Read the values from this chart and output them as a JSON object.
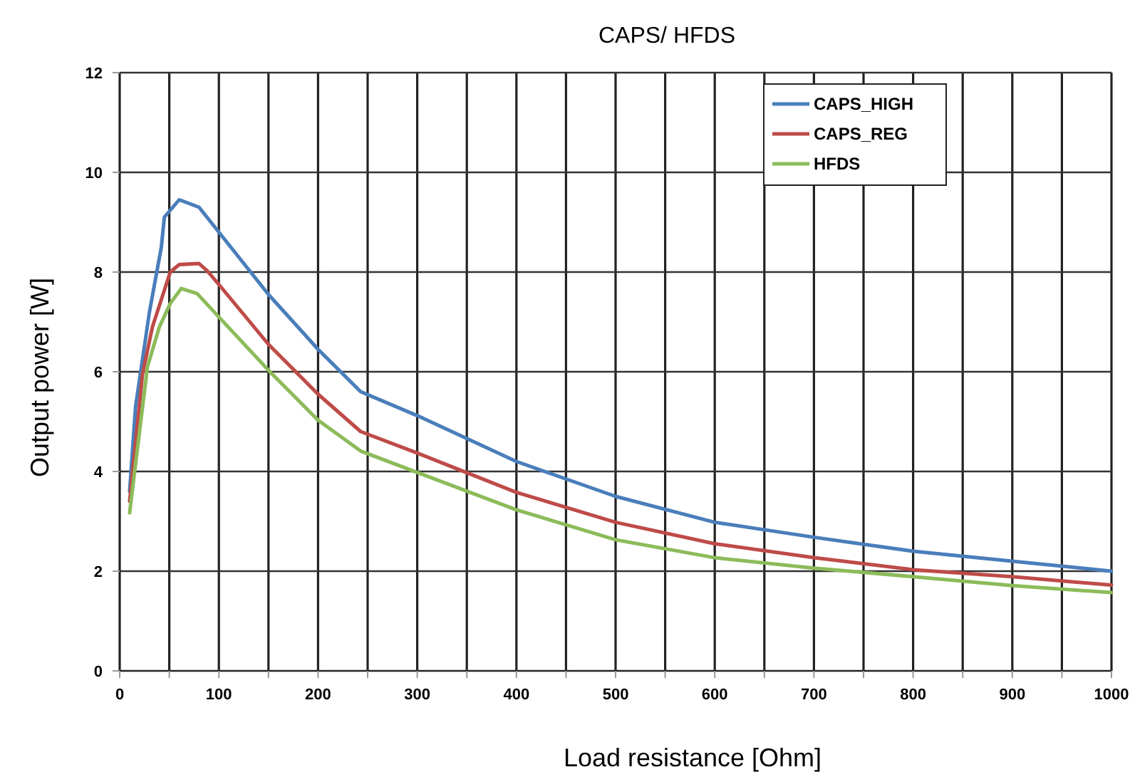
{
  "chart_data": {
    "type": "line",
    "title": "CAPS/ HFDS",
    "xlabel": "Load resistance [Ohm]",
    "ylabel": "Output power [W]",
    "xlim": [
      0,
      1000
    ],
    "ylim": [
      0,
      12
    ],
    "xticks": [
      0,
      {
        "value": 50,
        "label": null
      },
      100,
      {
        "value": 150,
        "label": null
      },
      200,
      {
        "value": 250,
        "label": null
      },
      300,
      {
        "value": 350,
        "label": null
      },
      400,
      {
        "value": 450,
        "label": null
      },
      500,
      {
        "value": 550,
        "label": null
      },
      600,
      {
        "value": 650,
        "label": null
      },
      700,
      {
        "value": 750,
        "label": null
      },
      800,
      {
        "value": 850,
        "label": null
      },
      900,
      {
        "value": 950,
        "label": null
      },
      1000
    ],
    "yticks": [
      0,
      2,
      4,
      6,
      8,
      10,
      12
    ],
    "grid": true,
    "legend": "top right",
    "line_style": "solid",
    "marker": "none",
    "series": [
      {
        "name": "CAPS_HIGH",
        "color": "#4a7ebb",
        "x": [
          10,
          16,
          30,
          42,
          45,
          60,
          80,
          90,
          100,
          150,
          200,
          243,
          300,
          400,
          500,
          600,
          700,
          800,
          900,
          1000
        ],
        "values": [
          3.6,
          5.3,
          7.2,
          8.5,
          9.1,
          9.45,
          9.3,
          9.05,
          8.8,
          7.55,
          6.45,
          5.6,
          5.12,
          4.2,
          3.5,
          2.98,
          2.68,
          2.4,
          2.2,
          2.0
        ]
      },
      {
        "name": "CAPS_REG",
        "color": "#be4b48",
        "x": [
          10,
          23,
          33,
          42,
          51,
          60,
          80,
          88,
          100,
          150,
          200,
          243,
          300,
          400,
          500,
          600,
          700,
          800,
          900,
          1000
        ],
        "values": [
          3.4,
          5.95,
          6.9,
          7.45,
          8.0,
          8.15,
          8.17,
          8.03,
          7.75,
          6.55,
          5.55,
          4.8,
          4.37,
          3.58,
          2.98,
          2.55,
          2.27,
          2.03,
          1.89,
          1.72
        ]
      },
      {
        "name": "HFDS",
        "color": "#8cbb5a",
        "x": [
          10,
          28,
          40,
          51,
          62,
          78,
          92,
          150,
          200,
          243,
          300,
          400,
          500,
          600,
          700,
          800,
          900,
          1000
        ],
        "values": [
          3.17,
          6.1,
          6.9,
          7.37,
          7.67,
          7.57,
          7.27,
          6.03,
          5.03,
          4.41,
          3.98,
          3.23,
          2.63,
          2.27,
          2.06,
          1.89,
          1.71,
          1.57
        ]
      }
    ]
  }
}
